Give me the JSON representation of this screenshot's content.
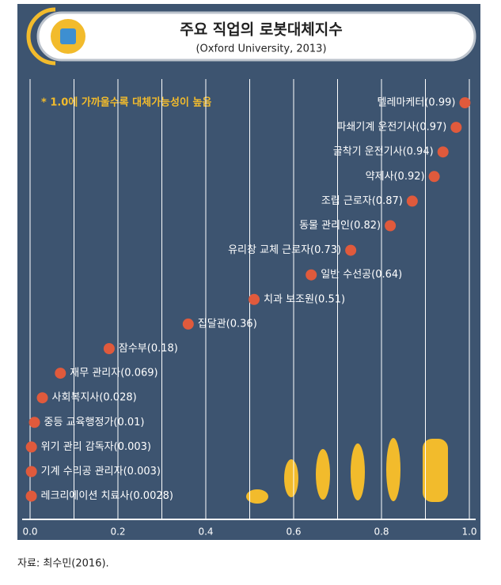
{
  "chart_data": {
    "type": "dot",
    "title": "주요 직업의 로봇대체지수",
    "subtitle": "(Oxford University, 2013)",
    "annotation": "* 1.0에 가까울수록 대체가능성이 높음",
    "source": "자료: 최수민(2016).",
    "values": [
      0.99,
      0.97,
      0.94,
      0.92,
      0.87,
      0.82,
      0.73,
      0.64,
      0.51,
      0.36,
      0.18,
      0.069,
      0.028,
      0.01,
      0.003,
      0.003,
      0.0028
    ],
    "value_labels": [
      "텔레마케터(0.99)",
      "파쇄기계 운전기사(0.97)",
      "굴착기 운전기사(0.94)",
      "약제사(0.92)",
      "조립 근로자(0.87)",
      "동물 관리인(0.82)",
      "유리창 교체 근로자(0.73)",
      "일반 수선공(0.64)",
      "치과 보조원(0.51)",
      "집달관(0.36)",
      "잠수부(0.18)",
      "재무 관리자(0.069)",
      "사회복지사(0.028)",
      "중등 교육행정가(0.01)",
      "위기 관리 감독자(0.003)",
      "기계 수리공 관리자(0.003)",
      "레크리에이션 치료사(0.0028)"
    ],
    "color": "#e05a3c",
    "xlim": [
      0,
      1
    ],
    "xticks": [
      {
        "value": 0,
        "label": "0.0"
      },
      {
        "value": 0.2,
        "label": "0.2"
      },
      {
        "value": 0.4,
        "label": "0.4"
      },
      {
        "value": 0.6,
        "label": "0.6"
      },
      {
        "value": 0.8,
        "label": "0.8"
      },
      {
        "value": 1,
        "label": "1.0"
      }
    ],
    "minor_xticks": [
      0.1,
      0.3,
      0.5,
      0.7,
      0.9
    ],
    "grid": true
  }
}
